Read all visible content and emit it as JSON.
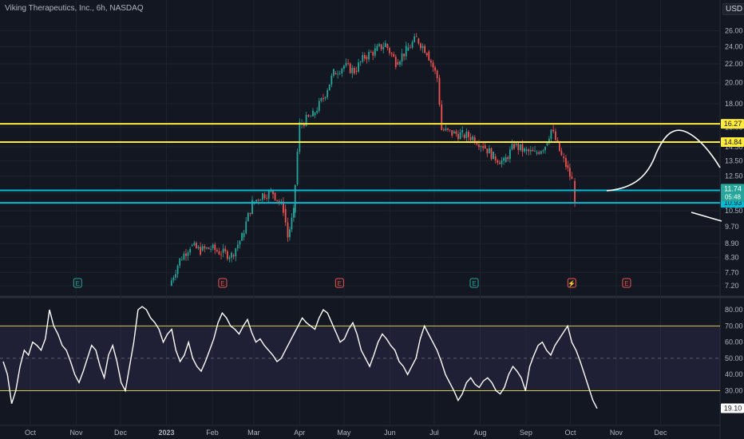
{
  "header": {
    "title": "Viking Therapeutics, Inc., 6h, NASDAQ",
    "currency": "USD"
  },
  "chart_data": [
    {
      "type": "candlestick",
      "yscale": "log",
      "ylim": [
        7.0,
        28.0
      ],
      "price_ticks": [
        26.0,
        24.0,
        22.0,
        20.0,
        18.0,
        16.0,
        14.5,
        13.5,
        12.5,
        11.5,
        10.5,
        9.7,
        8.9,
        8.3,
        7.7,
        7.2
      ],
      "x_labels": [
        "Oct",
        "Nov",
        "Dec",
        "2023",
        "Feb",
        "Mar",
        "Apr",
        "May",
        "Jun",
        "Jul",
        "Aug",
        "Sep",
        "Oct",
        "Nov",
        "Dec"
      ],
      "close_path": [
        [
          "2023-01-03",
          7.2
        ],
        [
          "2023-01-10",
          8.2
        ],
        [
          "2023-01-17",
          8.8
        ],
        [
          "2023-01-24",
          8.6
        ],
        [
          "2023-01-31",
          8.7
        ],
        [
          "2023-02-07",
          8.5
        ],
        [
          "2023-02-14",
          8.4
        ],
        [
          "2023-02-21",
          9.2
        ],
        [
          "2023-02-28",
          10.9
        ],
        [
          "2023-03-07",
          11.4
        ],
        [
          "2023-03-14",
          11.5
        ],
        [
          "2023-03-21",
          10.6
        ],
        [
          "2023-03-24",
          9.2
        ],
        [
          "2023-03-28",
          10.4
        ],
        [
          "2023-03-29",
          12.0
        ],
        [
          "2023-04-01",
          16.2
        ],
        [
          "2023-04-10",
          17.0
        ],
        [
          "2023-04-17",
          18.5
        ],
        [
          "2023-04-24",
          21.0
        ],
        [
          "2023-05-01",
          21.8
        ],
        [
          "2023-05-08",
          21.2
        ],
        [
          "2023-05-15",
          22.8
        ],
        [
          "2023-05-22",
          23.5
        ],
        [
          "2023-05-29",
          24.3
        ],
        [
          "2023-06-05",
          22.2
        ],
        [
          "2023-06-12",
          23.5
        ],
        [
          "2023-06-19",
          25.0
        ],
        [
          "2023-06-26",
          23.4
        ],
        [
          "2023-07-03",
          20.5
        ],
        [
          "2023-07-06",
          15.8
        ],
        [
          "2023-07-13",
          15.5
        ],
        [
          "2023-07-20",
          15.4
        ],
        [
          "2023-07-27",
          15.2
        ],
        [
          "2023-08-03",
          14.6
        ],
        [
          "2023-08-10",
          13.8
        ],
        [
          "2023-08-17",
          13.4
        ],
        [
          "2023-08-24",
          14.6
        ],
        [
          "2023-08-31",
          14.2
        ],
        [
          "2023-09-07",
          14.0
        ],
        [
          "2023-09-14",
          14.6
        ],
        [
          "2023-09-18",
          15.8
        ],
        [
          "2023-09-21",
          15.0
        ],
        [
          "2023-09-25",
          13.8
        ],
        [
          "2023-09-28",
          13.2
        ],
        [
          "2023-10-02",
          12.2
        ],
        [
          "2023-10-04",
          11.2
        ]
      ],
      "horizontal_levels": [
        {
          "value": 16.27,
          "label": "16.27",
          "color": "#ffeb3b"
        },
        {
          "value": 14.84,
          "label": "14.84",
          "color": "#ffeb3b"
        },
        {
          "value": 11.64,
          "label": "11.64",
          "color": "#00bcd4"
        },
        {
          "value": 10.93,
          "label": "10.93",
          "color": "#00bcd4"
        }
      ],
      "last_price": {
        "value": 11.74,
        "label": "11.74",
        "countdown": "05:48",
        "color": "#26a69a"
      },
      "event_markers": [
        {
          "label": "E",
          "date": "2022-11-02",
          "color": "#26a69a"
        },
        {
          "label": "E",
          "date": "2023-02-08",
          "color": "#ef5350"
        },
        {
          "label": "E",
          "date": "2023-04-28",
          "color": "#ef5350"
        },
        {
          "label": "E",
          "date": "2023-07-28",
          "color": "#26a69a"
        },
        {
          "label": "⚡",
          "date": "2023-10-02",
          "color": "#ef5350"
        },
        {
          "label": "E",
          "date": "2023-11-08",
          "color": "#ef5350"
        }
      ],
      "annotations": [
        {
          "type": "curve",
          "color": "#ffffff"
        },
        {
          "type": "line",
          "color": "#ffffff"
        }
      ]
    },
    {
      "type": "line",
      "ylim": [
        10,
        85
      ],
      "ticks": [
        80.0,
        70.0,
        60.0,
        50.0,
        40.0,
        30.0,
        20.0
      ],
      "upper_band": 70,
      "lower_band": 30,
      "mid_line": 50,
      "current": {
        "value": 19.1,
        "label": "19.10"
      },
      "series": [
        {
          "values": [
            48,
            40,
            22,
            30,
            45,
            55,
            52,
            60,
            58,
            55,
            62,
            80,
            70,
            65,
            58,
            55,
            48,
            40,
            35,
            42,
            50,
            58,
            55,
            45,
            38,
            52,
            58,
            48,
            35,
            30,
            45,
            60,
            80,
            82,
            80,
            75,
            72,
            68,
            60,
            65,
            68,
            55,
            48,
            52,
            60,
            50,
            45,
            42,
            48,
            55,
            62,
            72,
            78,
            75,
            70,
            68,
            65,
            70,
            74,
            66,
            60,
            62,
            58,
            55,
            52,
            48,
            50,
            55,
            60,
            65,
            70,
            75,
            72,
            70,
            68,
            75,
            80,
            78,
            72,
            66,
            60,
            62,
            68,
            72,
            65,
            55,
            50,
            45,
            52,
            60,
            65,
            62,
            58,
            55,
            48,
            45,
            40,
            45,
            50,
            62,
            70,
            65,
            60,
            55,
            48,
            40,
            35,
            30,
            24,
            28,
            35,
            38,
            34,
            32,
            36,
            38,
            35,
            30,
            28,
            32,
            40,
            45,
            42,
            38,
            30,
            45,
            52,
            58,
            60,
            55,
            52,
            58,
            62,
            66,
            70,
            60,
            55,
            48,
            40,
            32,
            24,
            19
          ]
        }
      ]
    }
  ]
}
